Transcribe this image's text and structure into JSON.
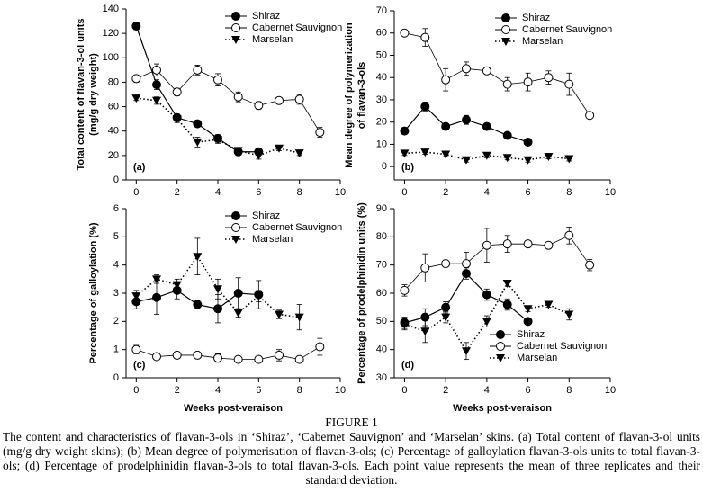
{
  "chart_data": [
    {
      "type": "line",
      "ylabel": [
        "Total content of flavan-3-ol units",
        "(mg/g dry weight)"
      ],
      "annotation": "(a)",
      "xlim": [
        -0.5,
        10
      ],
      "xticks": [
        0,
        2,
        4,
        6,
        8,
        10
      ],
      "ylim": [
        0,
        140
      ],
      "yticks": [
        0,
        20,
        40,
        60,
        80,
        100,
        120,
        140
      ],
      "legend": "upper right",
      "series": [
        {
          "name": "Shiraz",
          "color": "#000000",
          "marker": "circle-filled",
          "line_style": "solid",
          "x": [
            0,
            1,
            2,
            3,
            4,
            5,
            6
          ],
          "values": [
            126,
            78,
            51,
            46,
            34,
            23,
            23
          ],
          "errors": [
            3,
            4,
            3,
            2,
            3,
            2,
            2
          ]
        },
        {
          "name": "Cabernet Sauvignon",
          "color": "#000000",
          "marker": "circle-open",
          "line_style": "solid",
          "x": [
            0,
            1,
            2,
            3,
            4,
            5,
            6,
            7,
            8,
            9
          ],
          "values": [
            83,
            90,
            72,
            90,
            82,
            68,
            61,
            65,
            66,
            39
          ],
          "errors": [
            3,
            5,
            3,
            4,
            5,
            4,
            3,
            2,
            4,
            4
          ]
        },
        {
          "name": "Marselan",
          "color": "#000000",
          "marker": "triangle-down",
          "line_style": "dotted",
          "x": [
            0,
            1,
            2,
            3,
            4,
            5,
            6,
            7,
            8
          ],
          "values": [
            67,
            65,
            50,
            31,
            33,
            24,
            20,
            26,
            22
          ],
          "errors": [
            2,
            3,
            3,
            4,
            3,
            2,
            3,
            2,
            2
          ]
        }
      ]
    },
    {
      "type": "line",
      "ylabel": [
        "Mean degree of polymerization",
        "of flavan-3-ols"
      ],
      "annotation": "(b)",
      "xlim": [
        -0.5,
        10
      ],
      "xticks": [
        0,
        2,
        4,
        6,
        8,
        10
      ],
      "ylim": [
        -6,
        70
      ],
      "yticks": [
        0,
        10,
        20,
        30,
        40,
        50,
        60,
        70
      ],
      "legend": "upper right",
      "series": [
        {
          "name": "Shiraz",
          "color": "#000000",
          "marker": "circle-filled",
          "line_style": "solid",
          "x": [
            0,
            1,
            2,
            3,
            4,
            5,
            6
          ],
          "values": [
            16,
            27,
            18,
            21,
            18,
            14,
            11
          ],
          "errors": [
            1,
            2,
            1,
            2,
            1,
            1,
            1
          ]
        },
        {
          "name": "Cabernet Sauvignon",
          "color": "#000000",
          "marker": "circle-open",
          "line_style": "solid",
          "x": [
            0,
            1,
            2,
            3,
            4,
            5,
            6,
            7,
            8,
            9
          ],
          "values": [
            60,
            58,
            39,
            44,
            43,
            37,
            38,
            40,
            37,
            23
          ],
          "errors": [
            1,
            4,
            5,
            3,
            1,
            3,
            4,
            3,
            5,
            1
          ]
        },
        {
          "name": "Marselan",
          "color": "#000000",
          "marker": "triangle-down",
          "line_style": "dotted",
          "x": [
            0,
            1,
            2,
            3,
            4,
            5,
            6,
            7,
            8
          ],
          "values": [
            6,
            6.5,
            5.5,
            3,
            5,
            4,
            3,
            4.5,
            3.5
          ],
          "errors": [
            1,
            1,
            1,
            1,
            1,
            1,
            1,
            1,
            1
          ]
        }
      ]
    },
    {
      "type": "line",
      "xlabel": "Weeks post-veraison",
      "ylabel": [
        "Percentage of galloylation (%)"
      ],
      "annotation": "(c)",
      "xlim": [
        -0.5,
        10
      ],
      "xticks": [
        0,
        2,
        4,
        6,
        8,
        10
      ],
      "ylim": [
        0,
        6
      ],
      "yticks": [
        0,
        1,
        2,
        3,
        4,
        5,
        6
      ],
      "legend": "upper right",
      "series": [
        {
          "name": "Shiraz",
          "color": "#000000",
          "marker": "circle-filled",
          "line_style": "solid",
          "x": [
            0,
            1,
            2,
            3,
            4,
            5,
            6
          ],
          "values": [
            2.7,
            2.85,
            3.1,
            2.6,
            2.45,
            3.0,
            2.95
          ],
          "errors": [
            0.25,
            0.6,
            0.3,
            0.15,
            0.5,
            0.55,
            0.5
          ]
        },
        {
          "name": "Cabernet Sauvignon",
          "color": "#000000",
          "marker": "circle-open",
          "line_style": "solid",
          "x": [
            0,
            1,
            2,
            3,
            4,
            5,
            6,
            7,
            8,
            9
          ],
          "values": [
            1.0,
            0.75,
            0.8,
            0.8,
            0.7,
            0.65,
            0.65,
            0.8,
            0.65,
            1.1
          ],
          "errors": [
            0.15,
            0.1,
            0.1,
            0.1,
            0.15,
            0.1,
            0.1,
            0.2,
            0.1,
            0.3
          ]
        },
        {
          "name": "Marselan",
          "color": "#000000",
          "marker": "triangle-down",
          "line_style": "dotted",
          "x": [
            0,
            1,
            2,
            3,
            4,
            5,
            6,
            7,
            8
          ],
          "values": [
            2.9,
            3.5,
            3.3,
            4.3,
            3.15,
            2.3,
            2.9,
            2.25,
            2.15
          ],
          "errors": [
            0.2,
            0.15,
            0.2,
            0.65,
            0.35,
            0.15,
            0.2,
            0.15,
            0.45
          ]
        }
      ]
    },
    {
      "type": "line",
      "xlabel": "Weeks post-veraison",
      "ylabel": [
        "Percentage of prodelphinidin units (%)"
      ],
      "annotation": "(d)",
      "xlim": [
        -0.5,
        10
      ],
      "xticks": [
        0,
        2,
        4,
        6,
        8,
        10
      ],
      "ylim": [
        30,
        90
      ],
      "yticks": [
        30,
        40,
        50,
        60,
        70,
        80,
        90
      ],
      "legend": "lower center",
      "series": [
        {
          "name": "Shiraz",
          "color": "#000000",
          "marker": "circle-filled",
          "line_style": "solid",
          "x": [
            0,
            1,
            2,
            3,
            4,
            5,
            6
          ],
          "values": [
            49.5,
            51.5,
            55,
            67,
            59.5,
            56,
            50
          ],
          "errors": [
            2,
            3,
            2,
            2,
            2,
            2,
            1
          ]
        },
        {
          "name": "Cabernet Sauvignon",
          "color": "#000000",
          "marker": "circle-open",
          "line_style": "solid",
          "x": [
            0,
            1,
            2,
            3,
            4,
            5,
            6,
            7,
            8,
            9
          ],
          "values": [
            61,
            69,
            70.5,
            70.5,
            77,
            77.5,
            77.5,
            77,
            80.5,
            70
          ],
          "errors": [
            2,
            5,
            1,
            4,
            6,
            3,
            1,
            1,
            3,
            2
          ]
        },
        {
          "name": "Marselan",
          "color": "#000000",
          "marker": "triangle-down",
          "line_style": "dotted",
          "x": [
            0,
            1,
            2,
            3,
            4,
            5,
            6,
            7,
            8
          ],
          "values": [
            49,
            46.5,
            51.5,
            39.5,
            50,
            63.5,
            54.5,
            56,
            52.5
          ],
          "errors": [
            2,
            4,
            2,
            3,
            2,
            1,
            1,
            1,
            2
          ]
        }
      ]
    }
  ],
  "caption": {
    "label": "FIGURE 1",
    "text": "The content and characteristics of flavan-3-ols in ‘Shiraz’, ‘Cabernet Sauvignon’ and ‘Marselan’ skins. (a) Total content of flavan-3-ol units (mg/g dry weight skins); (b) Mean degree of polymerisation of flavan-3-ols; (c) Percentage of galloylation flavan-3-ols units to total flavan-3-ols; (d) Percentage of prodelphinidin flavan-3-ols to total flavan-3-ols. Each point value represents the mean of three replicates and their standard deviation."
  }
}
